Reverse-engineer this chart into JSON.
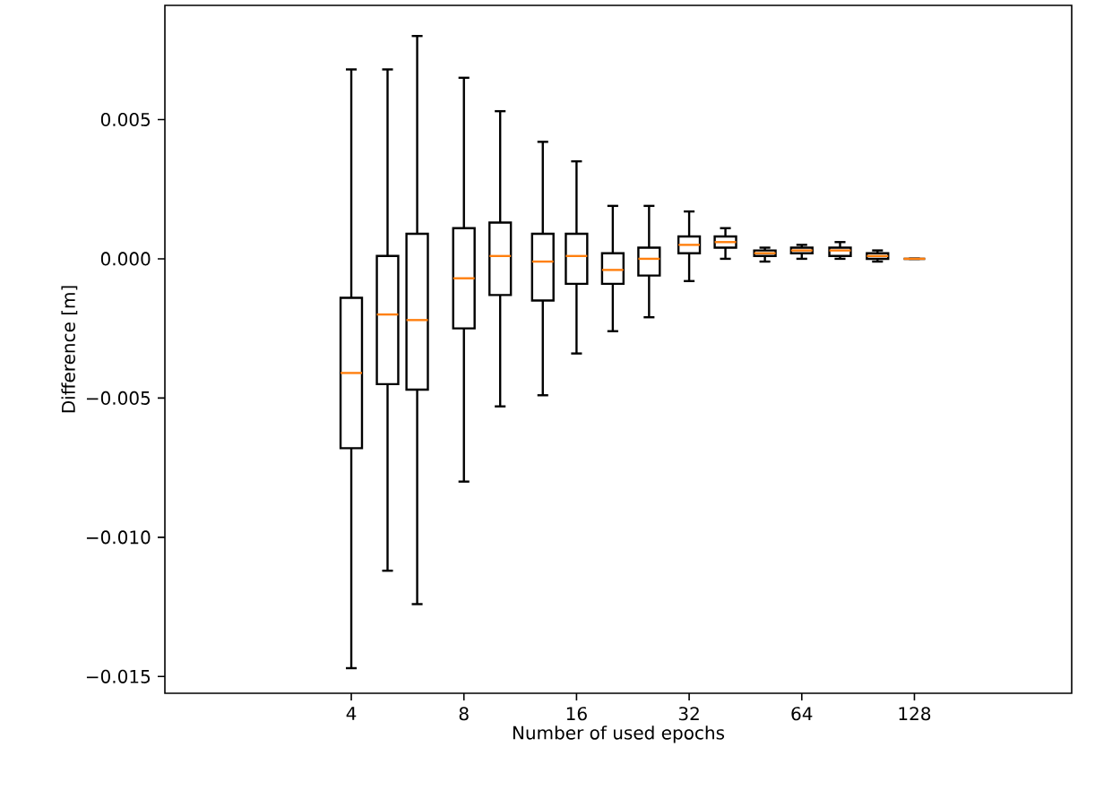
{
  "chart_data": {
    "type": "box",
    "xlabel": "Number of used epochs",
    "ylabel": "Difference [m]",
    "log": "x",
    "xlim": [
      1.27,
      337
    ],
    "xticks": [
      4,
      8,
      16,
      32,
      64,
      128
    ],
    "ylim": [
      -0.0156,
      0.0091
    ],
    "yticks": [
      {
        "value": -0.015,
        "label": "−0.015"
      },
      {
        "value": -0.01,
        "label": "−0.010"
      },
      {
        "value": -0.005,
        "label": "−0.005"
      },
      {
        "value": 0,
        "label": "0.000"
      },
      {
        "value": 0.005,
        "label": "0.005"
      }
    ],
    "x": [
      4,
      5,
      6,
      8,
      10,
      13,
      16,
      20,
      25,
      32,
      40,
      51,
      64,
      81,
      102,
      128
    ],
    "boxes": [
      {
        "low": -0.0147,
        "q1": -0.0068,
        "median": -0.0041,
        "q3": -0.0014,
        "high": 0.0068
      },
      {
        "low": -0.0112,
        "q1": -0.0045,
        "median": -0.002,
        "q3": 0.0001,
        "high": 0.0068
      },
      {
        "low": -0.0124,
        "q1": -0.0047,
        "median": -0.0022,
        "q3": 0.0009,
        "high": 0.008
      },
      {
        "low": -0.008,
        "q1": -0.0025,
        "median": -0.0007,
        "q3": 0.0011,
        "high": 0.0065
      },
      {
        "low": -0.0053,
        "q1": -0.0013,
        "median": 0.0001,
        "q3": 0.0013,
        "high": 0.0053
      },
      {
        "low": -0.0049,
        "q1": -0.0015,
        "median": -0.0001,
        "q3": 0.0009,
        "high": 0.0042
      },
      {
        "low": -0.0034,
        "q1": -0.0009,
        "median": 0.0001,
        "q3": 0.0009,
        "high": 0.0035
      },
      {
        "low": -0.0026,
        "q1": -0.0009,
        "median": -0.0004,
        "q3": 0.0002,
        "high": 0.0019
      },
      {
        "low": -0.0021,
        "q1": -0.0006,
        "median": 0.0,
        "q3": 0.0004,
        "high": 0.0019
      },
      {
        "low": -0.0008,
        "q1": 0.0002,
        "median": 0.0005,
        "q3": 0.0008,
        "high": 0.0017
      },
      {
        "low": 0.0,
        "q1": 0.0004,
        "median": 0.0006,
        "q3": 0.0008,
        "high": 0.0011
      },
      {
        "low": -0.0001,
        "q1": 0.0001,
        "median": 0.0002,
        "q3": 0.0003,
        "high": 0.0004
      },
      {
        "low": 0.0,
        "q1": 0.0002,
        "median": 0.0003,
        "q3": 0.0004,
        "high": 0.0005
      },
      {
        "low": 0.0,
        "q1": 0.0001,
        "median": 0.0003,
        "q3": 0.0004,
        "high": 0.0006
      },
      {
        "low": -0.0001,
        "q1": 0.0,
        "median": 0.0001,
        "q3": 0.0002,
        "high": 0.0003
      },
      {
        "low": 0.0,
        "q1": 0.0,
        "median": 0.0,
        "q3": 0.0,
        "high": 0.0
      }
    ]
  }
}
